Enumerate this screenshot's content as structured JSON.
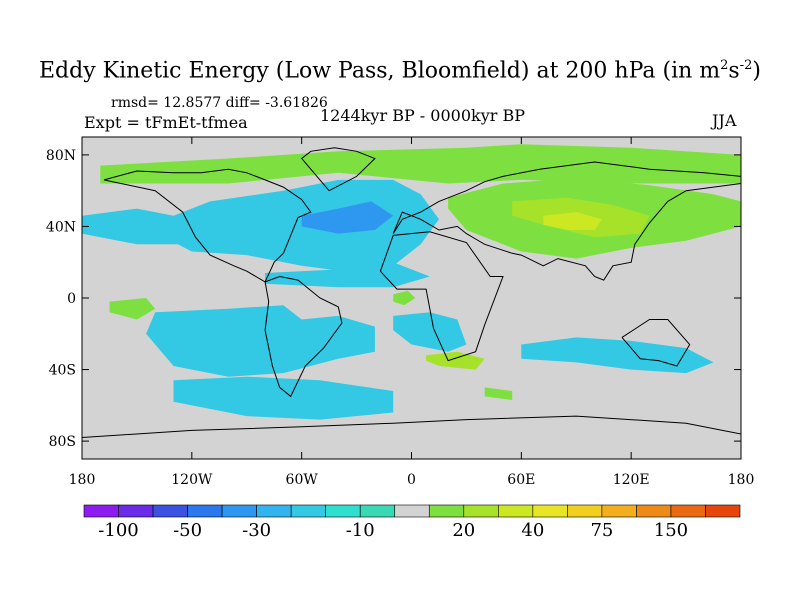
{
  "header": {
    "title_main": "Eddy Kinetic Energy (Low Pass, Bloomfield) at 200 hPa (in m",
    "title_sup1": "2",
    "title_mid": "s",
    "title_sup2": "-2",
    "title_end": ")",
    "stats": "rmsd= 12.8577 diff= -3.61826",
    "experiment": "Expt = tFmEt-tfmea",
    "period": "1244kyr BP - 0000kyr BP",
    "season": "JJA"
  },
  "chart_data": {
    "type": "heatmap",
    "projection": "cylindrical-equidistant",
    "xlim": [
      -180,
      180
    ],
    "ylim": [
      -90,
      90
    ],
    "x_ticks": [
      {
        "value": -180,
        "label": "180"
      },
      {
        "value": -120,
        "label": "120W"
      },
      {
        "value": -60,
        "label": "60W"
      },
      {
        "value": 0,
        "label": "0"
      },
      {
        "value": 60,
        "label": "60E"
      },
      {
        "value": 120,
        "label": "120E"
      },
      {
        "value": 180,
        "label": "180"
      }
    ],
    "y_ticks": [
      {
        "value": 80,
        "label": "80N"
      },
      {
        "value": 40,
        "label": "40N"
      },
      {
        "value": 0,
        "label": "0"
      },
      {
        "value": -40,
        "label": "40S"
      },
      {
        "value": -80,
        "label": "80S"
      }
    ],
    "background_color": "#d3d3d3",
    "colorbar": {
      "colors": [
        "#8e1cf0",
        "#6a2ce8",
        "#3c52e0",
        "#2a78ec",
        "#2e97f0",
        "#34b4ee",
        "#33c9e4",
        "#2edfd0",
        "#3bd8b4",
        "#d3d3d3",
        "#7ee040",
        "#a6e22a",
        "#cce822",
        "#e8e624",
        "#f2ce20",
        "#f2ae1c",
        "#ee8a18",
        "#ea6a14",
        "#e6460c"
      ],
      "labels": [
        {
          "boundary": 1,
          "text": "-100"
        },
        {
          "boundary": 3,
          "text": "-50"
        },
        {
          "boundary": 5,
          "text": "-30"
        },
        {
          "boundary": 8,
          "text": "-10"
        },
        {
          "boundary": 11,
          "text": "20"
        },
        {
          "boundary": 13,
          "text": "40"
        },
        {
          "boundary": 15,
          "text": "75"
        },
        {
          "boundary": 17,
          "text": "150"
        }
      ]
    },
    "anomaly_regions": [
      {
        "id": "arctic-band",
        "color": "#7ee040",
        "lon": [
          -170,
          -100,
          -40,
          30,
          60,
          120,
          180,
          180,
          120,
          60,
          20,
          -40,
          -100,
          -170
        ],
        "lat": [
          74,
          78,
          82,
          84,
          86,
          84,
          80,
          64,
          64,
          66,
          64,
          70,
          64,
          64
        ]
      },
      {
        "id": "eurasia-midlat",
        "color": "#7ee040",
        "lon": [
          20,
          50,
          90,
          130,
          165,
          180,
          180,
          150,
          120,
          90,
          60,
          30,
          20
        ],
        "lat": [
          56,
          64,
          67,
          63,
          58,
          54,
          40,
          32,
          28,
          22,
          26,
          38,
          50
        ]
      },
      {
        "id": "central-asia-core",
        "color": "#a6e22a",
        "lon": [
          55,
          85,
          110,
          130,
          125,
          100,
          75,
          55
        ],
        "lat": [
          54,
          56,
          52,
          46,
          36,
          34,
          40,
          46
        ]
      },
      {
        "id": "central-asia-peak",
        "color": "#cce822",
        "lon": [
          72,
          90,
          104,
          100,
          86,
          72
        ],
        "lat": [
          46,
          48,
          44,
          38,
          38,
          41
        ]
      },
      {
        "id": "n-atlantic",
        "color": "#33c9e4",
        "lon": [
          -130,
          -110,
          -70,
          -40,
          -10,
          5,
          15,
          5,
          -10,
          -30,
          -60,
          -90,
          -120,
          -135
        ],
        "lat": [
          46,
          54,
          60,
          66,
          66,
          58,
          44,
          30,
          18,
          14,
          18,
          24,
          26,
          34
        ]
      },
      {
        "id": "n-atlantic-core",
        "color": "#2e97f0",
        "lon": [
          -60,
          -40,
          -22,
          -10,
          -20,
          -40,
          -60
        ],
        "lat": [
          46,
          50,
          54,
          46,
          38,
          36,
          40
        ]
      },
      {
        "id": "n-pacific-band",
        "color": "#33c9e4",
        "lon": [
          -180,
          -150,
          -120,
          -120,
          -150,
          -180
        ],
        "lat": [
          46,
          50,
          44,
          30,
          30,
          36
        ]
      },
      {
        "id": "tropical-atlantic",
        "color": "#33c9e4",
        "lon": [
          -80,
          -40,
          -10,
          10,
          -10,
          -40,
          -80
        ],
        "lat": [
          14,
          16,
          20,
          12,
          6,
          6,
          8
        ]
      },
      {
        "id": "s-pacific",
        "color": "#33c9e4",
        "lon": [
          -140,
          -100,
          -70,
          -60,
          -40,
          -20,
          -20,
          -40,
          -70,
          -100,
          -130,
          -145
        ],
        "lat": [
          -8,
          -6,
          -4,
          -12,
          -10,
          -16,
          -30,
          -34,
          -42,
          -44,
          -38,
          -20
        ]
      },
      {
        "id": "s-ocean-sector",
        "color": "#33c9e4",
        "lon": [
          -130,
          -90,
          -50,
          -10,
          -10,
          -50,
          -90,
          -130
        ],
        "lat": [
          -46,
          -44,
          -46,
          -52,
          -64,
          -68,
          -66,
          -58
        ]
      },
      {
        "id": "s-atlantic",
        "color": "#33c9e4",
        "lon": [
          -10,
          10,
          25,
          30,
          20,
          0,
          -10
        ],
        "lat": [
          -10,
          -8,
          -12,
          -26,
          -30,
          -26,
          -18
        ]
      },
      {
        "id": "s-indian",
        "color": "#33c9e4",
        "lon": [
          60,
          90,
          120,
          150,
          165,
          150,
          120,
          90,
          60
        ],
        "lat": [
          -26,
          -22,
          -24,
          -28,
          -36,
          -42,
          -40,
          -36,
          -34
        ]
      },
      {
        "id": "tropical-pacific-green",
        "color": "#7ee040",
        "lon": [
          -165,
          -145,
          -140,
          -150,
          -165
        ],
        "lat": [
          -2,
          0,
          -6,
          -12,
          -8
        ]
      },
      {
        "id": "w-africa-green",
        "color": "#7ee040",
        "lon": [
          -10,
          -2,
          2,
          -4,
          -10
        ],
        "lat": [
          2,
          4,
          0,
          -4,
          -2
        ]
      },
      {
        "id": "s-indian-green",
        "color": "#a6e22a",
        "lon": [
          8,
          25,
          40,
          35,
          15,
          8
        ],
        "lat": [
          -32,
          -30,
          -34,
          -40,
          -38,
          -35
        ]
      },
      {
        "id": "s-indian-green-2",
        "color": "#7ee040",
        "lon": [
          40,
          55,
          55,
          40
        ],
        "lat": [
          -50,
          -52,
          -57,
          -55
        ]
      }
    ],
    "coastlines": [
      {
        "lon": [
          -168,
          -140,
          -125,
          -118,
          -110,
          -97,
          -90,
          -80,
          -75,
          -70,
          -66,
          -62,
          -55,
          -60,
          -70,
          -80,
          -90,
          -100,
          -115,
          -130,
          -150,
          -168
        ],
        "lat": [
          66,
          60,
          48,
          34,
          24,
          18,
          15,
          9,
          20,
          25,
          35,
          45,
          48,
          55,
          62,
          66,
          70,
          72,
          70,
          70,
          71,
          66
        ]
      },
      {
        "lon": [
          -80,
          -72,
          -62,
          -50,
          -40,
          -38,
          -48,
          -58,
          -66,
          -72,
          -76,
          -80,
          -78,
          -80
        ],
        "lat": [
          9,
          12,
          10,
          0,
          -5,
          -14,
          -28,
          -38,
          -55,
          -50,
          -38,
          -18,
          -2,
          9
        ]
      },
      {
        "lon": [
          -45,
          -30,
          -20,
          -30,
          -42,
          -55,
          -60,
          -45
        ],
        "lat": [
          60,
          68,
          78,
          82,
          84,
          82,
          78,
          60
        ]
      },
      {
        "lon": [
          -10,
          -5,
          5,
          15,
          30,
          40,
          50,
          70,
          100,
          130,
          160,
          180,
          180,
          150,
          140,
          130,
          122,
          120,
          110,
          105,
          100,
          95,
          80,
          72,
          60,
          55,
          40,
          35,
          30,
          25,
          15,
          5,
          -5,
          -10
        ],
        "lat": [
          36,
          44,
          48,
          54,
          60,
          65,
          68,
          72,
          76,
          72,
          70,
          68,
          64,
          60,
          54,
          42,
          30,
          20,
          18,
          10,
          12,
          18,
          22,
          18,
          24,
          25,
          30,
          33,
          36,
          40,
          38,
          44,
          48,
          36
        ]
      },
      {
        "lon": [
          -17,
          -10,
          10,
          30,
          43,
          50,
          40,
          35,
          20,
          12,
          8,
          -8,
          -17
        ],
        "lat": [
          15,
          35,
          37,
          31,
          12,
          12,
          -15,
          -30,
          -35,
          -17,
          5,
          5,
          15
        ]
      },
      {
        "lon": [
          115,
          130,
          140,
          152,
          145,
          135,
          125,
          115
        ],
        "lat": [
          -22,
          -12,
          -12,
          -26,
          -38,
          -35,
          -34,
          -22
        ]
      },
      {
        "lon": [
          -180,
          -120,
          -60,
          -10,
          30,
          90,
          150,
          180
        ],
        "lat": [
          -78,
          -74,
          -72,
          -70,
          -68,
          -66,
          -70,
          -76
        ]
      }
    ]
  }
}
